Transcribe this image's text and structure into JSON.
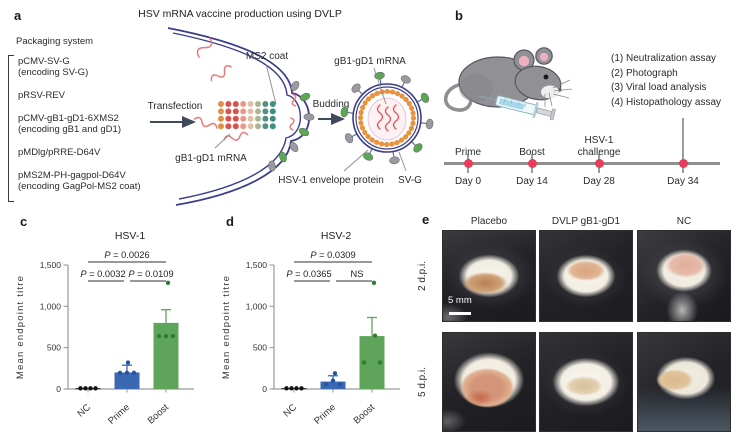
{
  "panel_a": {
    "label": "a",
    "title": "HSV mRNA vaccine production using DVLP",
    "packaging_title": "Packaging system",
    "plasmids": [
      {
        "name": "pCMV-SV-G",
        "desc": "(encoding SV-G)"
      },
      {
        "name": "pRSV-REV",
        "desc": ""
      },
      {
        "name": "pCMV-gB1-gD1-6XMS2",
        "desc": "(encoding gB1 and gD1)"
      },
      {
        "name": "pMDlg/pRRE-D64V",
        "desc": ""
      },
      {
        "name": "pMS2M-PH-gagpol-D64V",
        "desc": "(encoding GagPol-MS2 coat)"
      }
    ],
    "transfection_label": "Transfection",
    "ms2_coat_label": "MS2 coat",
    "mrna_label_cell": "gB1-gD1 mRNA",
    "budding_label": "Budding",
    "mrna_label_virus": "gB1-gD1 mRNA",
    "envelope_label": "HSV-1 envelope protein",
    "svg_protein_label": "SV-G"
  },
  "panel_b": {
    "label": "b",
    "assays": [
      "(1) Neutralization assay",
      "(2) Photograph",
      "(3) Viral load analysis",
      "(4) Histopathology assay"
    ],
    "timeline": [
      {
        "top": "Prime",
        "day": "Day 0"
      },
      {
        "top": "Boost",
        "day": "Day 14"
      },
      {
        "top": "HSV-1\nchallenge",
        "day": "Day 28"
      },
      {
        "top": "",
        "day": "Day 34"
      }
    ]
  },
  "chart_data": [
    {
      "id": "c",
      "type": "bar",
      "title": "HSV-1",
      "ylabel": "Mean endpoint titre",
      "ylim": [
        0,
        1500
      ],
      "ytick_values": [
        0,
        500,
        1000,
        1500
      ],
      "ytick_labels": [
        "0",
        "500",
        "1,000",
        "1,500"
      ],
      "categories": [
        "NC",
        "Prime",
        "Boost"
      ],
      "values": [
        10,
        200,
        800
      ],
      "errors": [
        0,
        88,
        160
      ],
      "bar_colors": [
        "#1a1a1a",
        "#3b69b1",
        "#5ea55b"
      ],
      "dot_colors": [
        "#111111",
        "#27549e",
        "#2e7d32"
      ],
      "points": [
        [
          [
            -7.5,
            8
          ],
          [
            -2.5,
            8
          ],
          [
            2.5,
            8
          ],
          [
            7.5,
            8
          ]
        ],
        [
          [
            -7,
            195
          ],
          [
            0,
            195
          ],
          [
            7,
            195
          ],
          [
            1,
            320
          ]
        ],
        [
          [
            -7,
            640
          ],
          [
            0,
            640
          ],
          [
            7,
            640
          ],
          [
            2,
            1285
          ]
        ]
      ],
      "significance": [
        {
          "from": 0,
          "to": 2,
          "label": "P = 0.0026"
        },
        {
          "from": 0,
          "to": 1,
          "label": "P = 0.0032"
        },
        {
          "from": 1,
          "to": 2,
          "label": "P = 0.0109"
        }
      ]
    },
    {
      "id": "d",
      "type": "bar",
      "title": "HSV-2",
      "ylabel": "Mean endpoint titre",
      "ylim": [
        0,
        1500
      ],
      "ytick_values": [
        0,
        500,
        1000,
        1500
      ],
      "ytick_labels": [
        "0",
        "500",
        "1,000",
        "1,500"
      ],
      "categories": [
        "NC",
        "Prime",
        "Boost"
      ],
      "values": [
        10,
        90,
        640
      ],
      "errors": [
        0,
        70,
        225
      ],
      "bar_colors": [
        "#1a1a1a",
        "#3b69b1",
        "#5ea55b"
      ],
      "dot_colors": [
        "#111111",
        "#27549e",
        "#2e7d32"
      ],
      "points": [
        [
          [
            -7.5,
            8
          ],
          [
            -2.5,
            8
          ],
          [
            2.5,
            8
          ],
          [
            7.5,
            8
          ]
        ],
        [
          [
            -7,
            55
          ],
          [
            7,
            55
          ],
          [
            0,
            100
          ],
          [
            2,
            190
          ]
        ],
        [
          [
            -8,
            320
          ],
          [
            8,
            320
          ],
          [
            3,
            645
          ],
          [
            2,
            1285
          ]
        ]
      ],
      "significance": [
        {
          "from": 0,
          "to": 2,
          "label": "P = 0.0309"
        },
        {
          "from": 0,
          "to": 1,
          "label": "P = 0.0365"
        },
        {
          "from": 1,
          "to": 2,
          "label": "NS"
        }
      ]
    }
  ],
  "panel_c_label": "c",
  "panel_d_label": "d",
  "panel_e": {
    "label": "e",
    "columns": [
      "Placebo",
      "DVLP gB1-gD1",
      "NC"
    ],
    "rows": [
      "2 d.p.i.",
      "5 d.p.i."
    ],
    "scale_bar": "5 mm"
  },
  "colors": {
    "membrane": "#3a3e8c",
    "mrna_red": "#e87a7a",
    "capsid_orange": "#e8943f",
    "envelope_gray": "#9a9aa0",
    "svg_green": "#5aa854",
    "arrow": "#3f4a5a",
    "timeline_dot": "#e83c5c",
    "bar_blue": "#3b69b1",
    "bar_green": "#5ea55b"
  },
  "diagram": {
    "dot_grid_colors": [
      "#df9048",
      "#d9534a",
      "#d9534a",
      "#e8998a",
      "#dcc3a2",
      "#a9b694",
      "#54917f",
      "#3f8e7e"
    ],
    "spike_colors": [
      "#9a9aa0",
      "#5aa854"
    ]
  }
}
